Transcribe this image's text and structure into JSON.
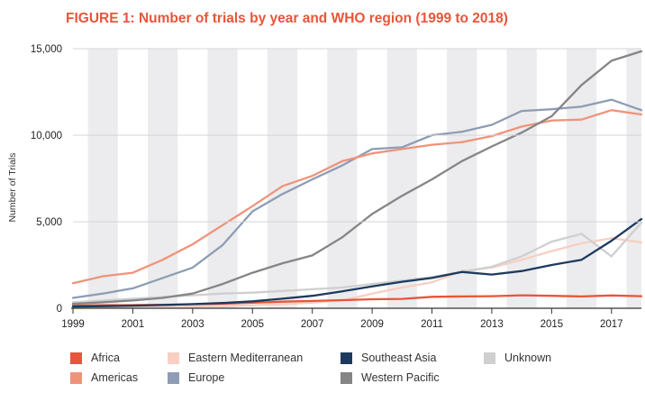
{
  "chart_data": {
    "type": "line",
    "title": "FIGURE 1: Number of trials by year and WHO region (1999 to 2018)",
    "xlabel": "",
    "ylabel": "Number of Trials",
    "ylim": [
      0,
      15000
    ],
    "y_ticks": [
      "0",
      "5,000",
      "10,000",
      "15,000"
    ],
    "y_tick_values": [
      0,
      5000,
      10000,
      15000
    ],
    "x_ticks": [
      "1999",
      "2001",
      "2003",
      "2005",
      "2007",
      "2009",
      "2011",
      "2013",
      "2015",
      "2017"
    ],
    "x": [
      1999,
      2000,
      2001,
      2002,
      2003,
      2004,
      2005,
      2006,
      2007,
      2008,
      2009,
      2010,
      2011,
      2012,
      2013,
      2014,
      2015,
      2016,
      2017,
      2018
    ],
    "series": [
      {
        "name": "Africa",
        "color": "#e8553a",
        "values": [
          150,
          170,
          180,
          200,
          230,
          260,
          320,
          380,
          420,
          470,
          520,
          540,
          660,
          680,
          700,
          750,
          720,
          680,
          740,
          700
        ]
      },
      {
        "name": "Americas",
        "color": "#f0937a",
        "values": [
          1450,
          1850,
          2050,
          2800,
          3700,
          4800,
          5900,
          7050,
          7650,
          8500,
          8950,
          9200,
          9450,
          9600,
          9950,
          10500,
          10850,
          10900,
          11450,
          11200
        ]
      },
      {
        "name": "Eastern Mediterranean",
        "color": "#f8cfc2",
        "values": [
          20,
          30,
          40,
          60,
          90,
          120,
          170,
          240,
          320,
          450,
          850,
          1200,
          1500,
          2150,
          2350,
          2800,
          3300,
          3750,
          4050,
          3800
        ]
      },
      {
        "name": "Europe",
        "color": "#8e9db4",
        "values": [
          600,
          850,
          1150,
          1750,
          2350,
          3650,
          5600,
          6600,
          7450,
          8250,
          9200,
          9300,
          10000,
          10200,
          10600,
          11400,
          11500,
          11650,
          12050,
          11450
        ]
      },
      {
        "name": "Southeast Asia",
        "color": "#1c3a5e",
        "values": [
          100,
          120,
          150,
          190,
          240,
          300,
          400,
          550,
          720,
          980,
          1260,
          1530,
          1750,
          2100,
          1950,
          2150,
          2500,
          2800,
          3900,
          5150
        ]
      },
      {
        "name": "Western Pacific",
        "color": "#858585",
        "values": [
          250,
          350,
          450,
          600,
          850,
          1400,
          2050,
          2600,
          3050,
          4100,
          5450,
          6500,
          7450,
          8500,
          9350,
          10150,
          11100,
          12900,
          14300,
          14850
        ]
      },
      {
        "name": "Unknown",
        "color": "#cfcfcf",
        "values": [
          350,
          450,
          550,
          650,
          750,
          850,
          900,
          1000,
          1100,
          1200,
          1400,
          1600,
          1800,
          2100,
          2400,
          3000,
          3850,
          4300,
          3000,
          4950
        ]
      }
    ]
  },
  "legend_rows": [
    [
      "Africa",
      "Eastern Mediterranean",
      "Southeast Asia",
      "Unknown"
    ],
    [
      "Americas",
      "Europe",
      "Western Pacific"
    ]
  ]
}
